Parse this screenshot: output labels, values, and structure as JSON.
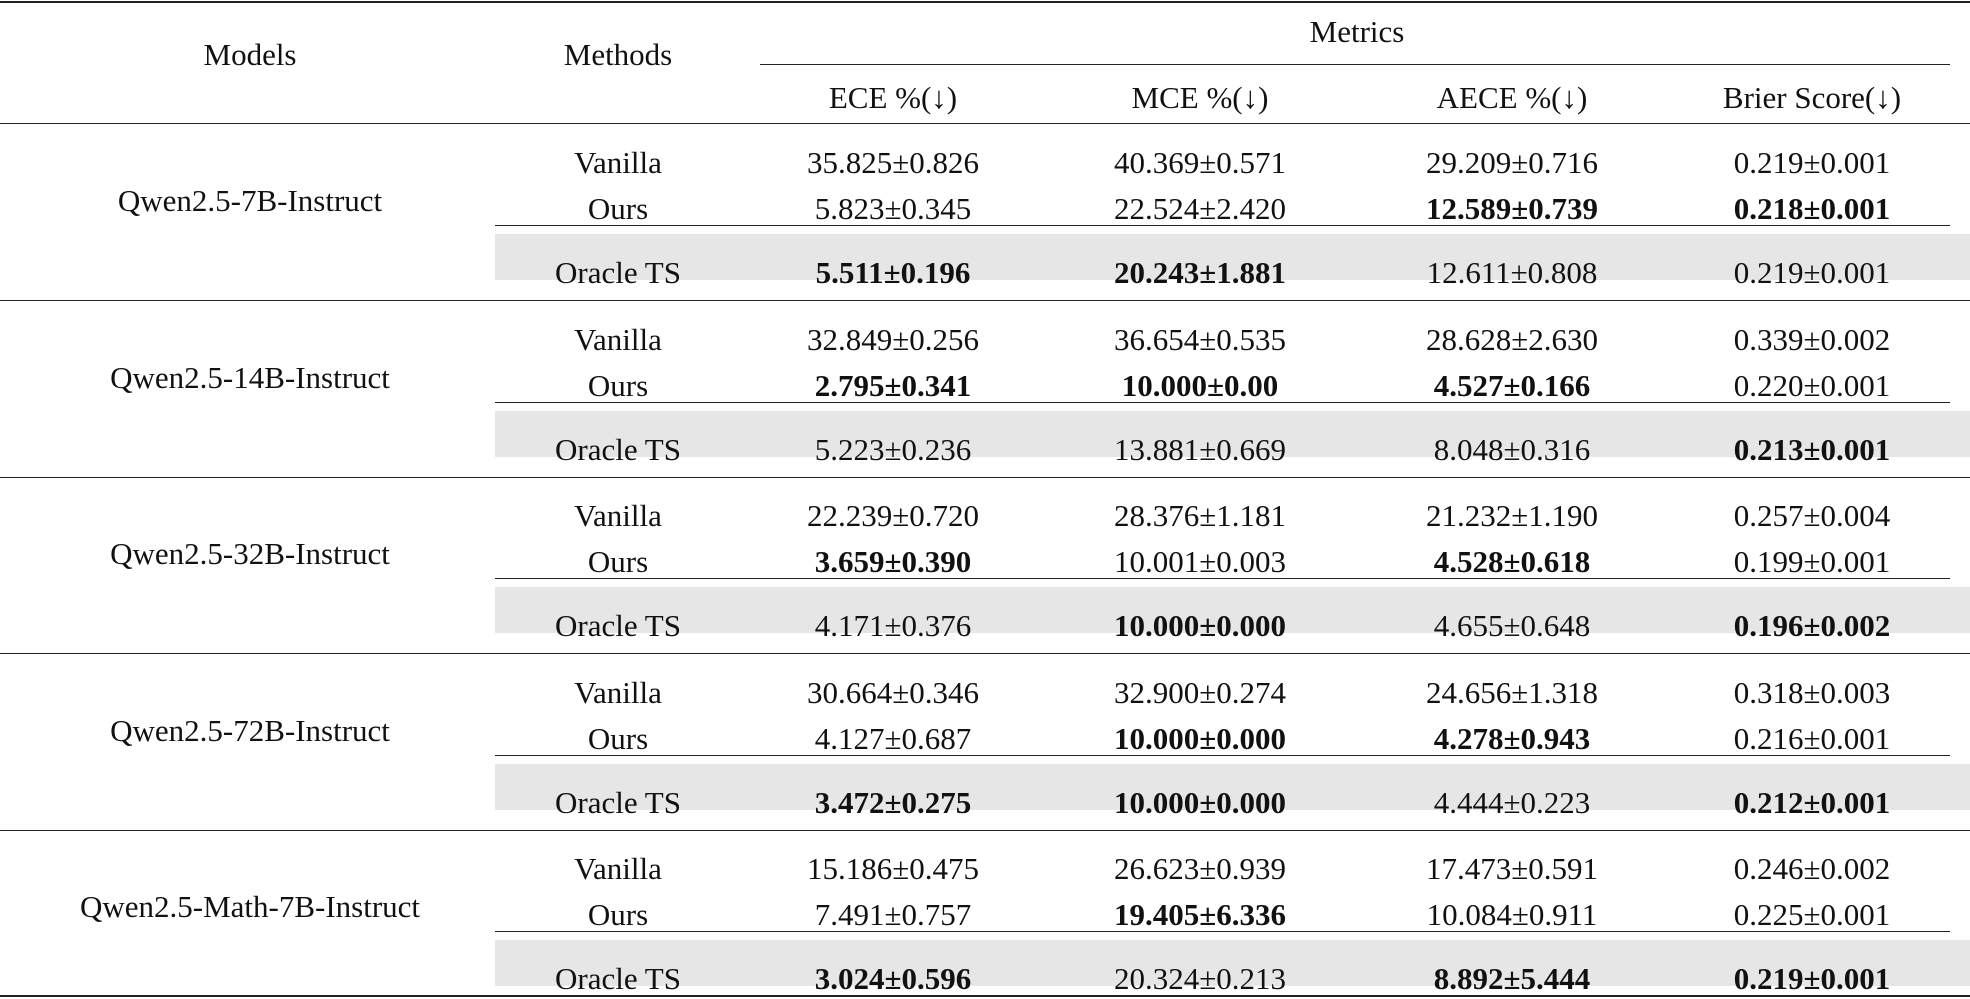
{
  "header": {
    "models": "Models",
    "methods": "Methods",
    "metrics": "Metrics",
    "metric_columns": [
      "ECE %(↓)",
      "MCE %(↓)",
      "AECE %(↓)",
      "Brier Score(↓)"
    ]
  },
  "groups": [
    {
      "model": "Qwen2.5-7B-Instruct",
      "rows": [
        {
          "method": "Vanilla",
          "values": [
            "35.825±0.826",
            "40.369±0.571",
            "29.209±0.716",
            "0.219±0.001"
          ],
          "bold": [
            false,
            false,
            false,
            false
          ]
        },
        {
          "method": "Ours",
          "values": [
            "5.823±0.345",
            "22.524±2.420",
            "12.589±0.739",
            "0.218±0.001"
          ],
          "bold": [
            false,
            false,
            true,
            true
          ]
        },
        {
          "method": "Oracle TS",
          "values": [
            "5.511±0.196",
            "20.243±1.881",
            "12.611±0.808",
            "0.219±0.001"
          ],
          "bold": [
            true,
            true,
            false,
            false
          ]
        }
      ]
    },
    {
      "model": "Qwen2.5-14B-Instruct",
      "rows": [
        {
          "method": "Vanilla",
          "values": [
            "32.849±0.256",
            "36.654±0.535",
            "28.628±2.630",
            "0.339±0.002"
          ],
          "bold": [
            false,
            false,
            false,
            false
          ]
        },
        {
          "method": "Ours",
          "values": [
            "2.795±0.341",
            "10.000±0.00",
            "4.527±0.166",
            "0.220±0.001"
          ],
          "bold": [
            true,
            true,
            true,
            false
          ]
        },
        {
          "method": "Oracle TS",
          "values": [
            "5.223±0.236",
            "13.881±0.669",
            "8.048±0.316",
            "0.213±0.001"
          ],
          "bold": [
            false,
            false,
            false,
            true
          ]
        }
      ]
    },
    {
      "model": "Qwen2.5-32B-Instruct",
      "rows": [
        {
          "method": "Vanilla",
          "values": [
            "22.239±0.720",
            "28.376±1.181",
            "21.232±1.190",
            "0.257±0.004"
          ],
          "bold": [
            false,
            false,
            false,
            false
          ]
        },
        {
          "method": "Ours",
          "values": [
            "3.659±0.390",
            "10.001±0.003",
            "4.528±0.618",
            "0.199±0.001"
          ],
          "bold": [
            true,
            false,
            true,
            false
          ]
        },
        {
          "method": "Oracle TS",
          "values": [
            "4.171±0.376",
            "10.000±0.000",
            "4.655±0.648",
            "0.196±0.002"
          ],
          "bold": [
            false,
            true,
            false,
            true
          ]
        }
      ]
    },
    {
      "model": "Qwen2.5-72B-Instruct",
      "rows": [
        {
          "method": "Vanilla",
          "values": [
            "30.664±0.346",
            "32.900±0.274",
            "24.656±1.318",
            "0.318±0.003"
          ],
          "bold": [
            false,
            false,
            false,
            false
          ]
        },
        {
          "method": "Ours",
          "values": [
            "4.127±0.687",
            "10.000±0.000",
            "4.278±0.943",
            "0.216±0.001"
          ],
          "bold": [
            false,
            true,
            true,
            false
          ]
        },
        {
          "method": "Oracle TS",
          "values": [
            "3.472±0.275",
            "10.000±0.000",
            "4.444±0.223",
            "0.212±0.001"
          ],
          "bold": [
            true,
            true,
            false,
            true
          ]
        }
      ]
    },
    {
      "model": "Qwen2.5-Math-7B-Instruct",
      "rows": [
        {
          "method": "Vanilla",
          "values": [
            "15.186±0.475",
            "26.623±0.939",
            "17.473±0.591",
            "0.246±0.002"
          ],
          "bold": [
            false,
            false,
            false,
            false
          ]
        },
        {
          "method": "Ours",
          "values": [
            "7.491±0.757",
            "19.405±6.336",
            "10.084±0.911",
            "0.225±0.001"
          ],
          "bold": [
            false,
            true,
            false,
            false
          ]
        },
        {
          "method": "Oracle TS",
          "values": [
            "3.024±0.596",
            "20.324±0.213",
            "8.892±5.444",
            "0.219±0.001"
          ],
          "bold": [
            true,
            false,
            true,
            true
          ]
        }
      ]
    }
  ]
}
